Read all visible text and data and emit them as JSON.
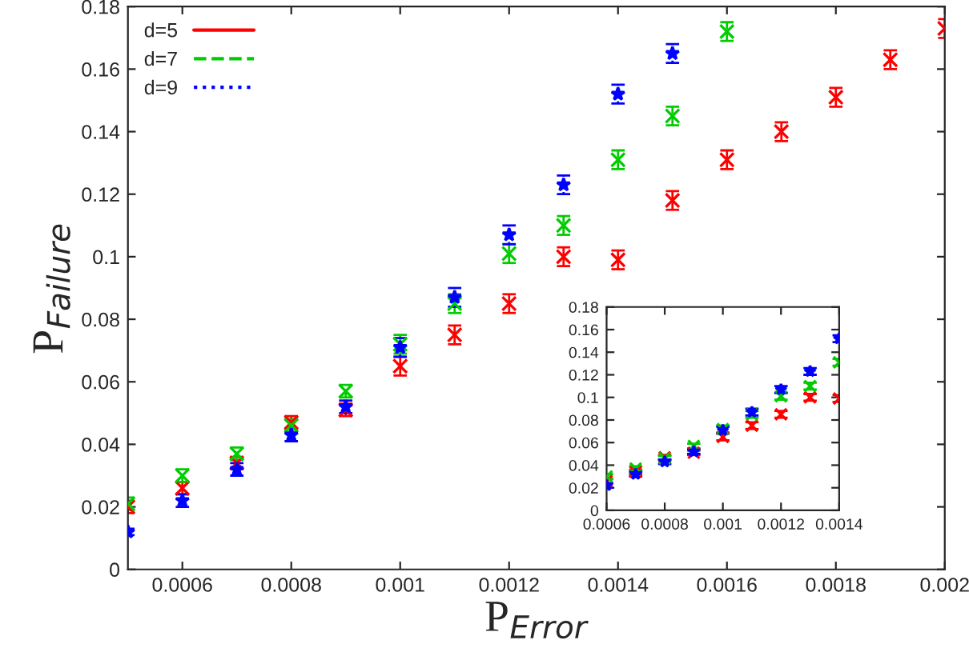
{
  "chart_data": [
    {
      "type": "scatter",
      "xlabel": "P$_{Error}$",
      "ylabel": "P$_{Failure}$",
      "x": [
        0.0005,
        0.0006,
        0.0007,
        0.0008,
        0.0009,
        0.001,
        0.0011,
        0.0012,
        0.0013,
        0.0014,
        0.0015,
        0.0016,
        0.0017,
        0.0018,
        0.0019,
        0.002
      ],
      "series": [
        {
          "name": "d=5",
          "color": "#ff0000",
          "marker": "cross",
          "line_style": "solid",
          "values": [
            0.02,
            0.026,
            0.034,
            0.047,
            0.051,
            0.065,
            0.075,
            0.085,
            0.1,
            0.099,
            0.118,
            0.131,
            0.14,
            0.151,
            0.163,
            0.173
          ],
          "errors": [
            0.002,
            0.002,
            0.002,
            0.002,
            0.002,
            0.003,
            0.003,
            0.003,
            0.003,
            0.003,
            0.003,
            0.003,
            0.003,
            0.003,
            0.003,
            0.003
          ]
        },
        {
          "name": "d=7",
          "color": "#00cc00",
          "marker": "cross",
          "line_style": "dashed",
          "values": [
            0.021,
            0.03,
            0.037,
            0.046,
            0.057,
            0.072,
            0.085,
            0.101,
            0.11,
            0.131,
            0.145,
            0.172,
            null,
            null,
            null,
            null
          ],
          "errors": [
            0.002,
            0.002,
            0.002,
            0.002,
            0.002,
            0.003,
            0.003,
            0.003,
            0.003,
            0.003,
            0.003,
            0.003,
            null,
            null,
            null,
            null
          ]
        },
        {
          "name": "d=9",
          "color": "#0000ff",
          "marker": "star",
          "line_style": "dotted",
          "values": [
            0.012,
            0.022,
            0.032,
            0.043,
            0.052,
            0.071,
            0.087,
            0.107,
            0.123,
            0.152,
            0.165,
            null,
            null,
            null,
            null,
            null
          ],
          "errors": [
            0.001,
            0.002,
            0.002,
            0.002,
            0.002,
            0.003,
            0.003,
            0.003,
            0.003,
            0.003,
            0.003,
            null,
            null,
            null,
            null,
            null
          ]
        }
      ],
      "xlim": [
        0.0005,
        0.002
      ],
      "ylim": [
        0,
        0.18
      ],
      "xticks": [
        0.0006,
        0.0008,
        0.001,
        0.0012,
        0.0014,
        0.0016,
        0.0018,
        0.002
      ],
      "yticks": [
        0,
        0.02,
        0.04,
        0.06,
        0.08,
        0.1,
        0.12,
        0.14,
        0.16,
        0.18
      ],
      "legend": "top left",
      "grid": false
    },
    {
      "type": "scatter",
      "x": [
        0.0006,
        0.0007,
        0.0008,
        0.0009,
        0.001,
        0.0011,
        0.0012,
        0.0013,
        0.0014
      ],
      "series": [
        {
          "color": "#ff0000",
          "marker": "cross",
          "line_style": "solid",
          "values": [
            0.026,
            0.034,
            0.047,
            0.051,
            0.065,
            0.075,
            0.085,
            0.1,
            0.099
          ],
          "errors": [
            0.002,
            0.002,
            0.002,
            0.002,
            0.003,
            0.003,
            0.003,
            0.003,
            0.003
          ]
        },
        {
          "color": "#00cc00",
          "marker": "cross",
          "line_style": "dashed",
          "values": [
            0.03,
            0.037,
            0.046,
            0.057,
            0.072,
            0.085,
            0.101,
            0.11,
            0.131
          ],
          "errors": [
            0.002,
            0.002,
            0.002,
            0.002,
            0.003,
            0.003,
            0.003,
            0.003,
            0.003
          ]
        },
        {
          "color": "#0000ff",
          "marker": "star",
          "line_style": "dotted",
          "values": [
            0.022,
            0.032,
            0.043,
            0.052,
            0.071,
            0.087,
            0.107,
            0.123,
            0.152
          ],
          "errors": [
            0.002,
            0.002,
            0.002,
            0.002,
            0.003,
            0.003,
            0.003,
            0.003,
            0.003
          ]
        }
      ],
      "xlim": [
        0.0006,
        0.0014
      ],
      "ylim": [
        0,
        0.18
      ],
      "xticks": [
        0.0006,
        0.0008,
        0.001,
        0.0012,
        0.0014
      ],
      "yticks": [
        0,
        0.02,
        0.04,
        0.06,
        0.08,
        0.1,
        0.12,
        0.14,
        0.16,
        0.18
      ],
      "grid": false
    }
  ]
}
